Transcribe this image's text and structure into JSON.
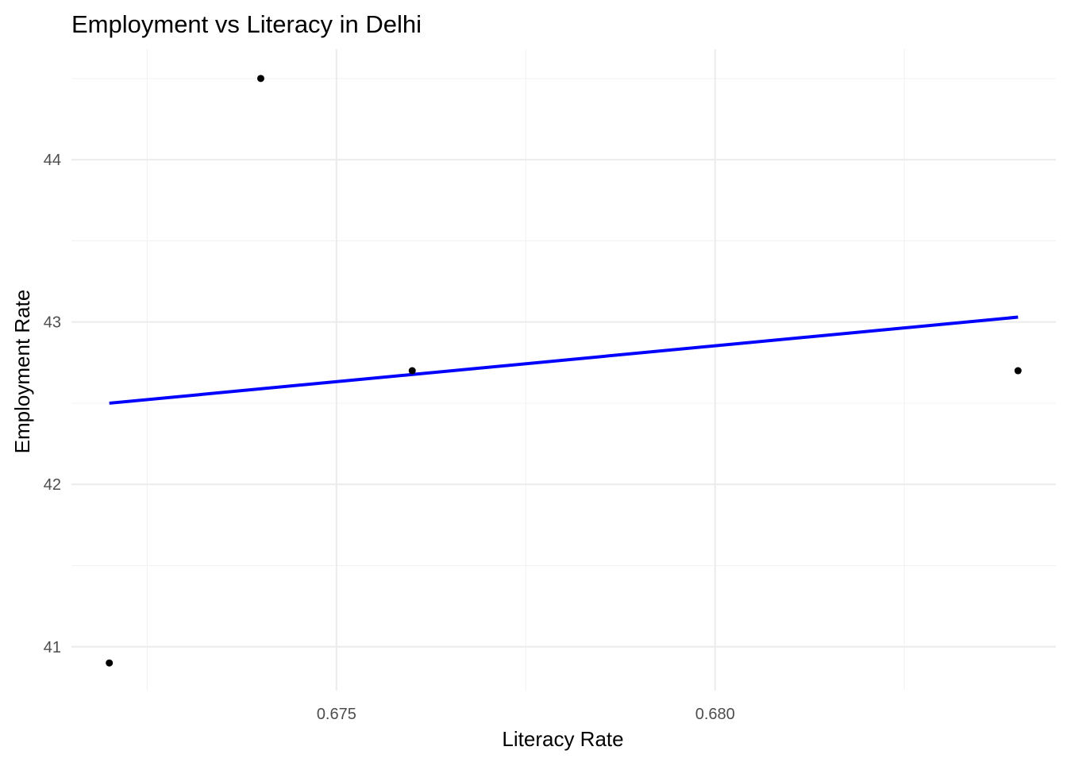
{
  "chart_data": {
    "type": "scatter",
    "title": "Employment vs Literacy in Delhi",
    "xlabel": "Literacy Rate",
    "ylabel": "Employment Rate",
    "xlim": [
      0.6715,
      0.6845
    ],
    "ylim": [
      40.73,
      44.68
    ],
    "x_ticks": [
      0.675,
      0.68
    ],
    "x_tick_labels": [
      "0.675",
      "0.680"
    ],
    "x_minor_ticks": [
      0.6725,
      0.6775,
      0.6825
    ],
    "y_ticks": [
      41,
      42,
      43,
      44
    ],
    "y_tick_labels": [
      "41",
      "42",
      "43",
      "44"
    ],
    "y_minor_ticks": [
      41.5,
      42.5,
      43.5,
      44.5
    ],
    "grid": true,
    "points": [
      {
        "x": 0.672,
        "y": 40.9
      },
      {
        "x": 0.674,
        "y": 44.5
      },
      {
        "x": 0.676,
        "y": 42.7
      },
      {
        "x": 0.684,
        "y": 42.7
      }
    ],
    "trend_line": {
      "x": [
        0.672,
        0.684
      ],
      "y": [
        42.5,
        43.03
      ],
      "color": "#0000ff"
    },
    "point_color": "#000000"
  }
}
